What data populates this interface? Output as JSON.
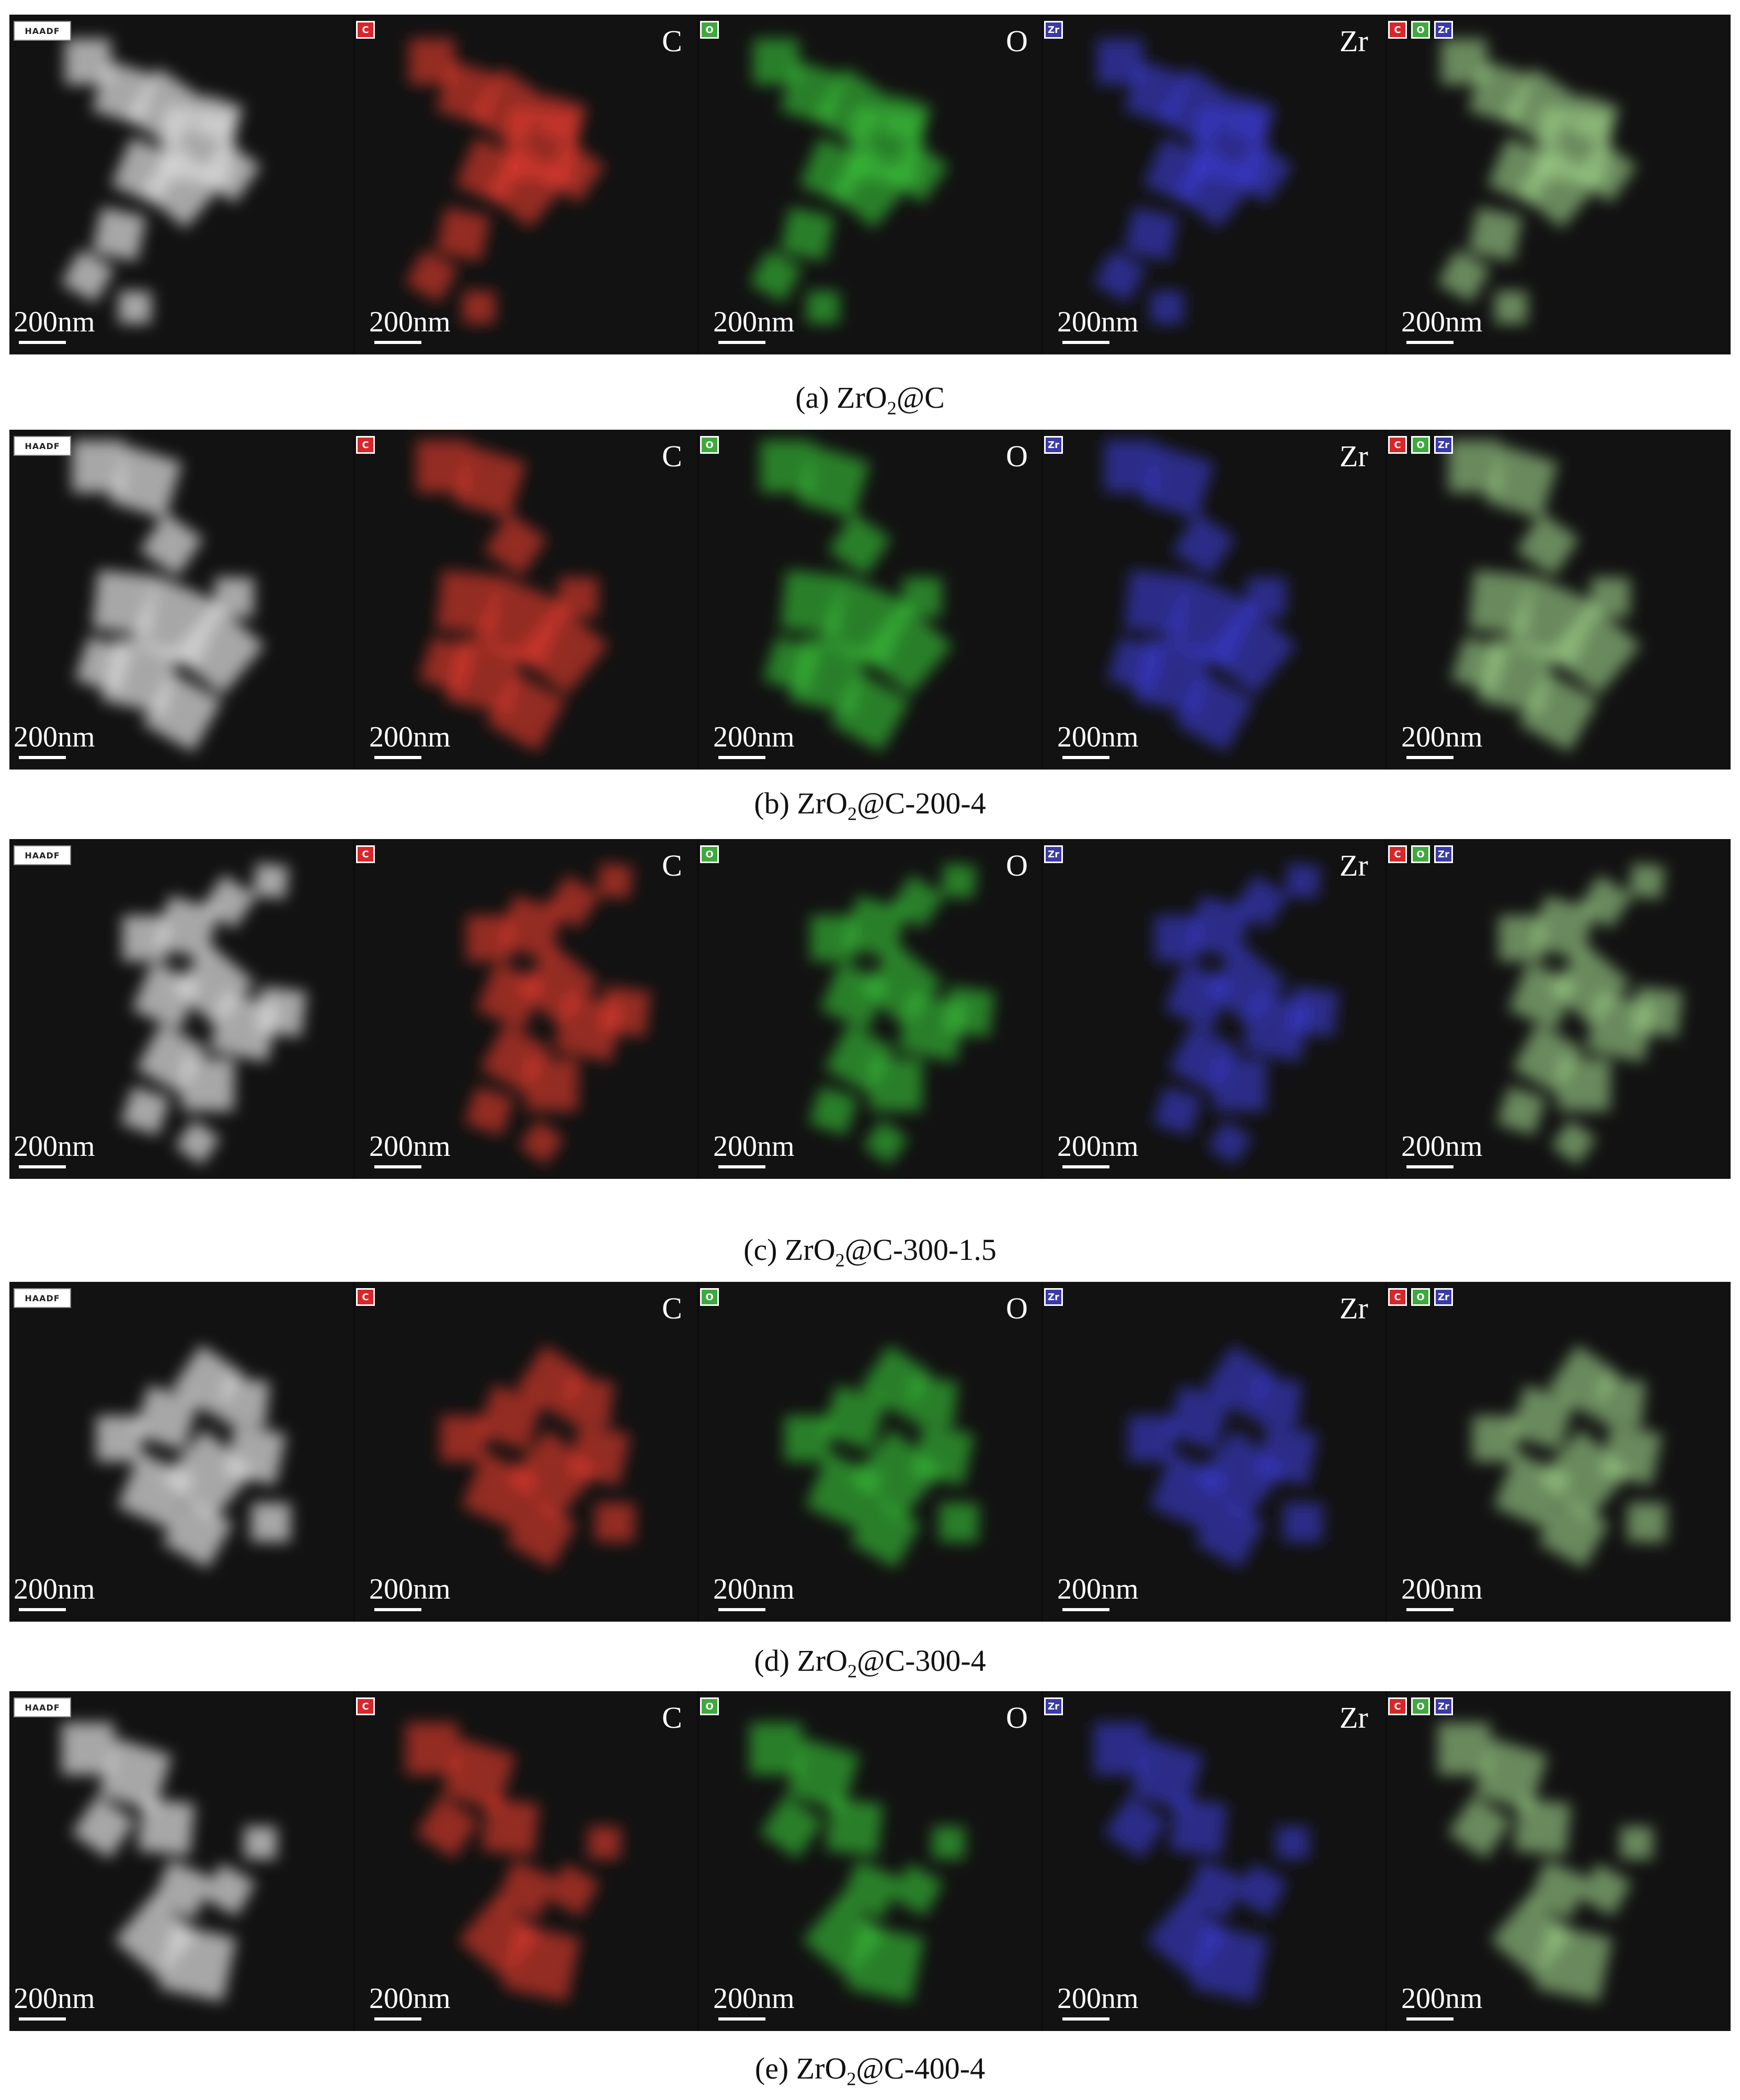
{
  "panels": [
    {
      "id": "a",
      "caption_prefix": "(a) ZrO",
      "caption_sub": "2",
      "caption_suffix": "@C"
    },
    {
      "id": "b",
      "caption_prefix": "(b) ZrO",
      "caption_sub": "2",
      "caption_suffix": "@C-200-4"
    },
    {
      "id": "c",
      "caption_prefix": "(c) ZrO",
      "caption_sub": "2",
      "caption_suffix": "@C-300-1.5"
    },
    {
      "id": "d",
      "caption_prefix": "(d) ZrO",
      "caption_sub": "2",
      "caption_suffix": "@C-300-4"
    },
    {
      "id": "e",
      "caption_prefix": "(e) ZrO",
      "caption_sub": "2",
      "caption_suffix": "@C-400-4"
    }
  ],
  "scale_label": "200nm",
  "element_labels": {
    "c": "C",
    "o": "O",
    "zr": "Zr"
  },
  "chip_text": {
    "haadf": "HAADF",
    "c": "C",
    "o": "O",
    "zr": "Zr"
  },
  "colors": {
    "background": "#121212",
    "haadf": "#d8d8d8",
    "carbon": "#e23a2e",
    "oxygen": "#38c238",
    "zirconium": "#3a3ad0",
    "overlay": "#9fd28a",
    "chip_c": "#d8262a",
    "chip_o": "#3fa83f",
    "chip_zr": "#3a3aa8"
  }
}
